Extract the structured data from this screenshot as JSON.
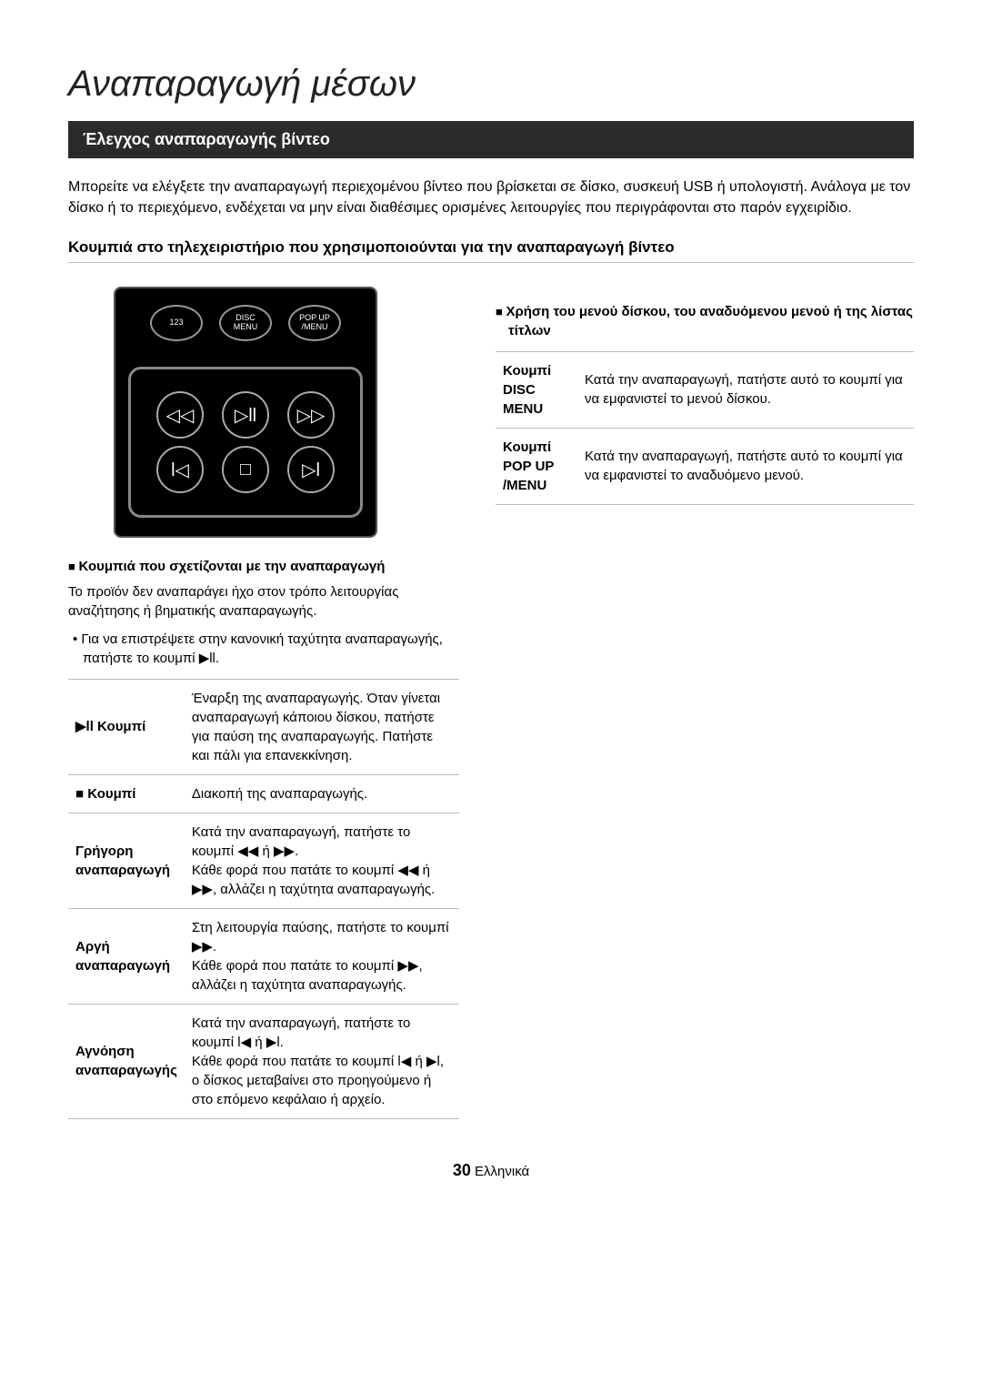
{
  "title": "Αναπαραγωγή μέσων",
  "section_header": "Έλεγχος αναπαραγωγής βίντεο",
  "intro": "Μπορείτε να ελέγξετε την αναπαραγωγή περιεχομένου βίντεο που βρίσκεται σε δίσκο, συσκευή USB ή υπολογιστή. Ανάλογα με τον δίσκο ή το περιεχόμενο, ενδέχεται να μην είναι διαθέσιμες ορισμένες λειτουργίες που περιγράφονται στο παρόν εγχειρίδιο.",
  "subtitle": "Κουμπιά στο τηλεχειριστήριο που χρησιμοποιούνται για την αναπαραγωγή βίντεο",
  "remote": {
    "btn123": "123",
    "disc_menu": "DISC\nMENU",
    "popup": "POP UP\n/MENU"
  },
  "left": {
    "lead": "Κουμπιά που σχετίζονται με την αναπαραγωγή",
    "note": "Το προϊόν δεν αναπαράγει ήχο στον τρόπο λειτουργίας αναζήτησης ή βηματικής αναπαραγωγής.",
    "bullet": "Για να επιστρέψετε στην κανονική ταχύτητα αναπαραγωγής, πατήστε το κουμπί ▶ll.",
    "rows": [
      {
        "label": "▶ll Κουμπί",
        "desc": "Έναρξη της αναπαραγωγής. Όταν γίνεται αναπαραγωγή κάποιου δίσκου, πατήστε για παύση της αναπαραγωγής. Πατήστε και πάλι για επανεκκίνηση."
      },
      {
        "label": "■ Κουμπί",
        "desc": "Διακοπή της αναπαραγωγής."
      },
      {
        "label": "Γρήγορη αναπαραγωγή",
        "desc": "Κατά την αναπαραγωγή, πατήστε το κουμπί ◀◀ ή ▶▶.\nΚάθε φορά που πατάτε το κουμπί ◀◀ ή ▶▶, αλλάζει η ταχύτητα αναπαραγωγής."
      },
      {
        "label": "Αργή αναπαραγωγή",
        "desc": "Στη λειτουργία παύσης, πατήστε το κουμπί ▶▶.\nΚάθε φορά που πατάτε το κουμπί ▶▶, αλλάζει η ταχύτητα αναπαραγωγής."
      },
      {
        "label": "Αγνόηση αναπαραγωγής",
        "desc": "Κατά την αναπαραγωγή, πατήστε το κουμπί l◀ ή ▶l.\nΚάθε φορά που πατάτε το κουμπί l◀ ή ▶l, ο δίσκος μεταβαίνει στο προηγούμενο ή στο επόμενο κεφάλαιο ή αρχείο."
      }
    ]
  },
  "right": {
    "lead": "Χρήση του μενού δίσκου, του αναδυόμενου μενού ή της λίστας τίτλων",
    "rows": [
      {
        "label": "Κουμπί DISC MENU",
        "desc": "Κατά την αναπαραγωγή, πατήστε αυτό το κουμπί για να εμφανιστεί το μενού δίσκου."
      },
      {
        "label": "Κουμπί POP UP /MENU",
        "desc": "Κατά την αναπαραγωγή, πατήστε αυτό το κουμπί για να εμφανιστεί το αναδυόμενο μενού."
      }
    ]
  },
  "footer": {
    "page": "30",
    "lang": "Ελληνικά"
  }
}
